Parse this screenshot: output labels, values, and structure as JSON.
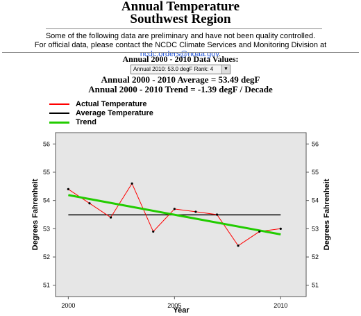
{
  "header": {
    "title_line1": "Annual Temperature",
    "title_line2": "Southwest Region"
  },
  "notice": {
    "line1": "Some of the following data are preliminary and have not been quality controlled.",
    "line2_prefix": "For official data, please contact the NCDC Climate Services and Monitoring Division at ",
    "email": "ncdc.orders@noaa.gov",
    "line2_suffix": "."
  },
  "selector": {
    "label": "Annual 2000 - 2010 Data Values:",
    "selected": "Annual 2010: 53.0 degF   Rank: 4"
  },
  "summary": {
    "average": "Annual 2000 - 2010 Average = 53.49 degF",
    "trend": "Annual 2000 - 2010 Trend = -1.39 degF / Decade"
  },
  "legend": [
    {
      "label": "Actual Temperature",
      "color": "#ff0000"
    },
    {
      "label": "Average Temperature",
      "color": "#000000"
    },
    {
      "label": "Trend",
      "color": "#22cc00"
    }
  ],
  "chart_data": {
    "type": "line",
    "xlabel": "Year",
    "ylabel": "Degrees Fahrenheit",
    "xlim": [
      1999.4,
      2011.2
    ],
    "ylim": [
      50.6,
      56.4
    ],
    "xticks": [
      2000,
      2005,
      2010
    ],
    "yticks": [
      51,
      52,
      53,
      54,
      55,
      56
    ],
    "grid": false,
    "background": "#e6e6e6",
    "series": [
      {
        "name": "Actual Temperature",
        "color": "#ff0000",
        "x": [
          2000,
          2001,
          2002,
          2003,
          2004,
          2005,
          2006,
          2007,
          2008,
          2009,
          2010
        ],
        "y": [
          54.4,
          53.9,
          53.4,
          54.6,
          52.9,
          53.7,
          53.6,
          53.5,
          52.4,
          52.9,
          53.0
        ]
      },
      {
        "name": "Average Temperature",
        "color": "#000000",
        "x": [
          2000,
          2010
        ],
        "y": [
          53.49,
          53.49
        ]
      },
      {
        "name": "Trend",
        "color": "#22cc00",
        "x": [
          2000,
          2010
        ],
        "y": [
          54.19,
          52.8
        ]
      }
    ]
  }
}
